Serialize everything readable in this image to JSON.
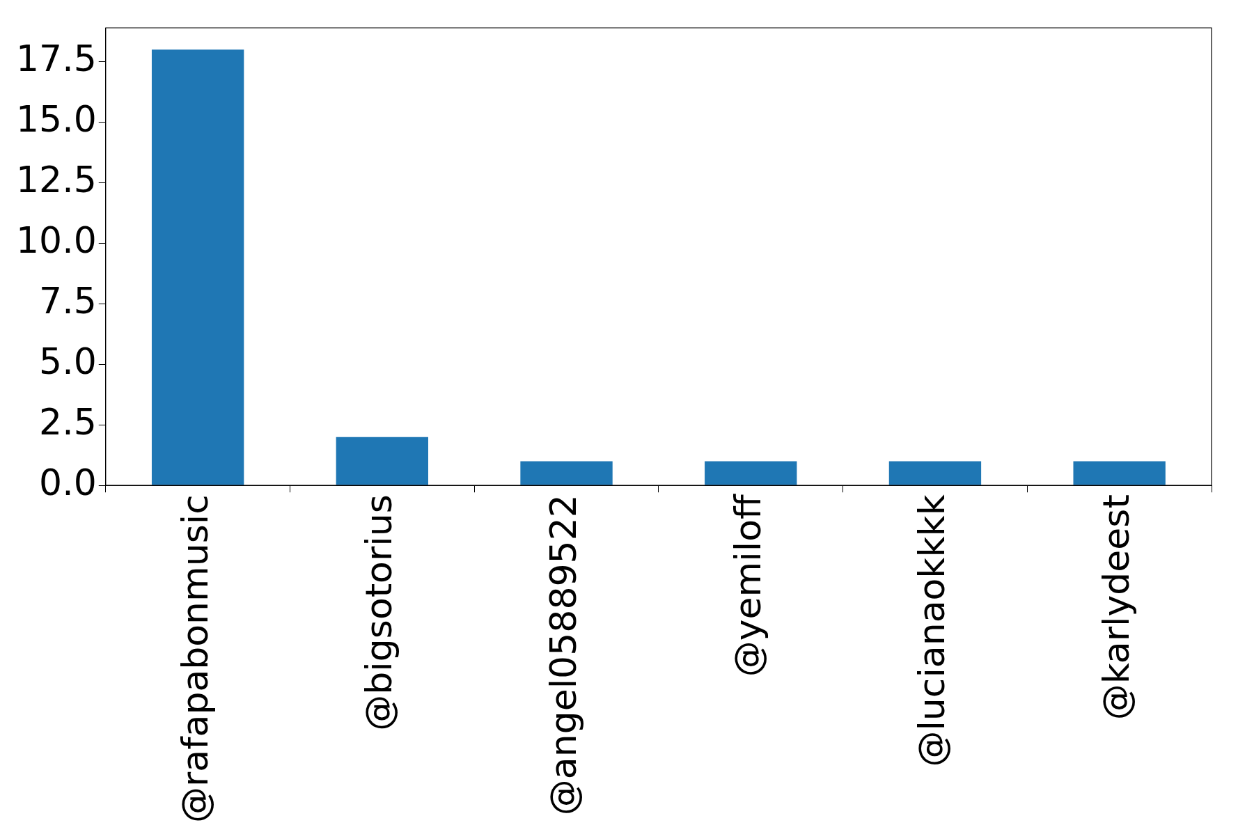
{
  "chart_data": {
    "type": "bar",
    "categories": [
      "@rafapabonmusic",
      "@bigsotorius",
      "@angel05889522",
      "@yemiloff",
      "@lucianaokkkk",
      "@karlydeest"
    ],
    "values": [
      18,
      2,
      1,
      1,
      1,
      1
    ],
    "color": "#1f77b4",
    "ylim": [
      0,
      18.9
    ],
    "yticks": [
      {
        "value": 0,
        "label": "0.0"
      },
      {
        "value": 2.5,
        "label": "2.5"
      },
      {
        "value": 5,
        "label": "5.0"
      },
      {
        "value": 7.5,
        "label": "7.5"
      },
      {
        "value": 10,
        "label": "10.0"
      },
      {
        "value": 12.5,
        "label": "12.5"
      },
      {
        "value": 15,
        "label": "15.0"
      },
      {
        "value": 17.5,
        "label": "17.5"
      }
    ]
  }
}
